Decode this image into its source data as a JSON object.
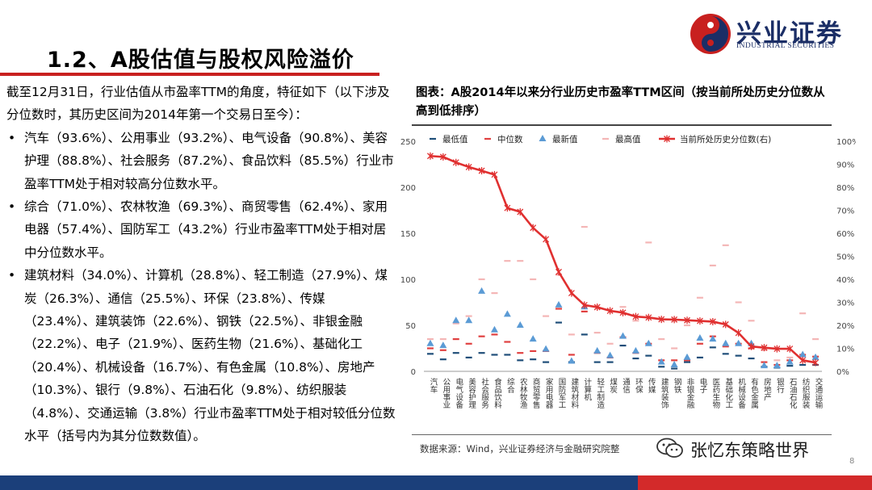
{
  "header": {
    "title": "1.2、A股估值与股权风险溢价",
    "logo_cn": "兴业证券",
    "logo_en": "INDUSTRIAL SECURITIES"
  },
  "body": {
    "intro": "截至12月31日，行业估值从市盈率TTM的角度，特征如下（以下涉及分位数时，其历史区间为2014年第一个交易日至今）：",
    "bullets": [
      "汽车（93.6%）、公用事业（93.2%）、电气设备（90.8%）、美容护理（88.8%）、社会服务（87.2%）、食品饮料（85.5%）行业市盈率TTM处于相对较高分位数水平。",
      "综合（71.0%）、农林牧渔（69.3%）、商贸零售（62.4%）、家用电器（57.4%）、国防军工（43.2%）行业市盈率TTM处于相对居中分位数水平。",
      "建筑材料（34.0%）、计算机（28.8%）、轻工制造（27.9%）、煤炭（26.3%）、通信（25.5%）、环保（23.8%）、传媒（23.4%）、建筑装饰（22.6%）、钢铁（22.5%）、非银金融（22.2%）、电子（21.9%）、医药生物（21.6%）、基础化工（20.4%）、机械设备（16.7%）、有色金属（10.8%）、房地产（10.3%）、银行（9.8%）、石油石化（9.8%）、纺织服装（4.8%）、交通运输（3.8%）行业市盈率TTM处于相对较低分位数水平（括号内为其分位数数值）。"
    ]
  },
  "chart_title": "图表：A股2014年以来分行业历史市盈率TTM区间（按当前所处历史分位数从高到低排序）",
  "source": "数据来源：Wind，兴业证券经济与金融研究院整",
  "watermark": "张忆东策略世界",
  "page_number": "8",
  "colors": {
    "accent_red": "#c8201f",
    "navy": "#1b3f7a",
    "min_color": "#1f4e79",
    "median_color": "#e04040",
    "latest_color": "#5b9bd5",
    "max_color": "#f4b6b6",
    "line_color": "#e03030"
  },
  "chart_data": {
    "type": "line",
    "categories": [
      "汽车",
      "公用事业",
      "电气设备",
      "美容护理",
      "社会服务",
      "食品饮料",
      "综合",
      "农林牧渔",
      "商贸零售",
      "家用电器",
      "国防军工",
      "建筑材料",
      "计算机",
      "轻工制造",
      "煤炭",
      "通信",
      "环保",
      "传媒",
      "建筑装饰",
      "钢铁",
      "非银金融",
      "电子",
      "医药生物",
      "基础化工",
      "机械设备",
      "有色金属",
      "房地产",
      "银行",
      "石油石化",
      "纺织服装",
      "交通运输"
    ],
    "y_left_ticks": [
      "0",
      "50",
      "100",
      "150",
      "200",
      "250"
    ],
    "y_right_ticks": [
      "0%",
      "10%",
      "20%",
      "30%",
      "40%",
      "50%",
      "60%",
      "70%",
      "80%",
      "90%",
      "100%"
    ],
    "ylim_left": [
      0,
      250
    ],
    "ylim_right": [
      0,
      100
    ],
    "legend_position": "top",
    "series": [
      {
        "name": "最低值",
        "axis": "left",
        "marker": "dash",
        "values": [
          19,
          13,
          20,
          15,
          20,
          18,
          18,
          12,
          13,
          10,
          53,
          10,
          40,
          10,
          10,
          28,
          14,
          17,
          5,
          3,
          10,
          15,
          26,
          19,
          17,
          14,
          5,
          4,
          6,
          7,
          7
        ]
      },
      {
        "name": "中位数",
        "axis": "left",
        "marker": "dash",
        "values": [
          25,
          23,
          35,
          30,
          38,
          40,
          32,
          20,
          22,
          22,
          68,
          18,
          65,
          20,
          15,
          37,
          20,
          30,
          12,
          12,
          12,
          30,
          38,
          27,
          30,
          25,
          10,
          7,
          12,
          18,
          16
        ]
      },
      {
        "name": "最新值",
        "axis": "left",
        "marker": "triangle",
        "values": [
          30,
          28,
          55,
          55,
          87,
          45,
          62,
          50,
          35,
          24,
          72,
          11,
          70,
          22,
          17,
          38,
          22,
          30,
          10,
          7,
          15,
          36,
          35,
          30,
          30,
          30,
          6,
          6,
          10,
          18,
          15
        ]
      },
      {
        "name": "最高值",
        "axis": "left",
        "marker": "dash",
        "values": [
          35,
          35,
          52,
          60,
          100,
          85,
          120,
          120,
          100,
          60,
          105,
          40,
          157,
          42,
          30,
          70,
          55,
          140,
          35,
          25,
          50,
          80,
          115,
          137,
          75,
          55,
          23,
          12,
          15,
          63,
          35
        ]
      },
      {
        "name": "当前所处历史分位数(右)",
        "axis": "right",
        "marker": "star-line",
        "values": [
          93.6,
          93.2,
          90.8,
          88.8,
          87.2,
          85.5,
          71.0,
          69.3,
          62.4,
          57.4,
          43.2,
          34.0,
          28.8,
          27.9,
          26.3,
          25.5,
          23.8,
          23.4,
          22.6,
          22.5,
          22.2,
          21.9,
          21.6,
          20.4,
          16.7,
          10.8,
          10.3,
          9.8,
          9.8,
          4.8,
          3.8
        ]
      }
    ]
  }
}
